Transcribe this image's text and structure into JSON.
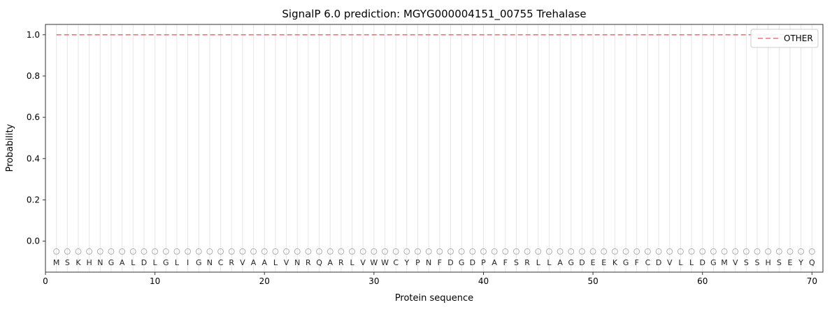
{
  "chart_data": {
    "type": "line",
    "title": "SignalP 6.0 prediction: MGYG000004151_00755 Trehalase",
    "xlabel": "Protein sequence",
    "ylabel": "Probability",
    "xlim": [
      0,
      71
    ],
    "ylim": [
      -0.15,
      1.05
    ],
    "xticks": [
      0,
      10,
      20,
      30,
      40,
      50,
      60,
      70
    ],
    "yticks": [
      0.0,
      0.2,
      0.4,
      0.6,
      0.8,
      1.0
    ],
    "grid": {
      "vertical_per_residue": true,
      "color": "#e6e6e6"
    },
    "legend": {
      "position": "upper right",
      "entries": [
        {
          "label": "OTHER",
          "color": "#f07575",
          "style": "dashed"
        }
      ]
    },
    "sequence": [
      "M",
      "S",
      "K",
      "H",
      "N",
      "G",
      "A",
      "L",
      "D",
      "L",
      "G",
      "L",
      "I",
      "G",
      "N",
      "C",
      "R",
      "V",
      "A",
      "A",
      "L",
      "V",
      "N",
      "R",
      "Q",
      "A",
      "R",
      "L",
      "V",
      "W",
      "W",
      "C",
      "Y",
      "P",
      "N",
      "F",
      "D",
      "G",
      "D",
      "P",
      "A",
      "F",
      "S",
      "R",
      "L",
      "L",
      "A",
      "G",
      "D",
      "E",
      "E",
      "K",
      "G",
      "F",
      "C",
      "D",
      "V",
      "L",
      "L",
      "D",
      "G",
      "M",
      "V",
      "S",
      "S",
      "H",
      "S",
      "E",
      "Y",
      "Q"
    ],
    "series": [
      {
        "name": "OTHER",
        "style": "dashed",
        "color": "#f07575",
        "x_range": [
          1,
          70
        ],
        "y_constant": 1.0
      }
    ],
    "markers": {
      "shape": "circle-open",
      "color": "#b0b0b0",
      "y": -0.05,
      "letter_y": -0.09
    },
    "colors": {
      "spine": "#333333",
      "tick": "#333333",
      "grid": "#e6e6e6",
      "line": "#f07575",
      "marker": "#b0b0b0",
      "legend_border": "#cccccc"
    }
  }
}
